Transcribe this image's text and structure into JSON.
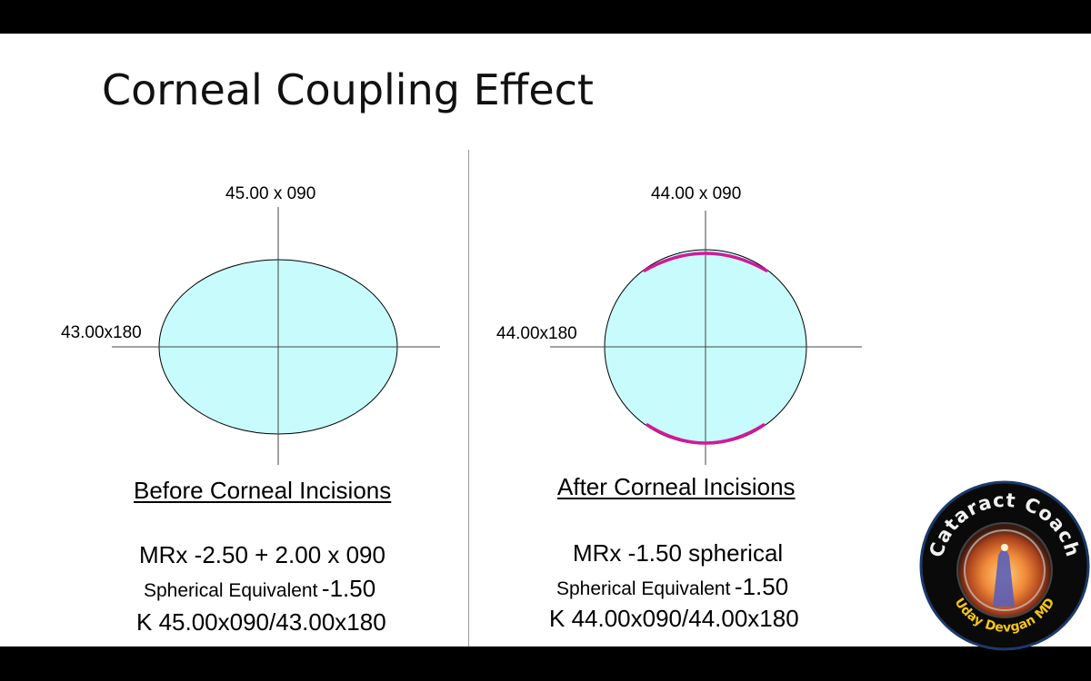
{
  "title": "Corneal Coupling Effect",
  "left": {
    "vertical_label": "45.00 x 090",
    "horizontal_label": "43.00x180",
    "caption": "Before Corneal Incisions",
    "mrx": "MRx -2.50 + 2.00 x 090",
    "se_label": "Spherical Equivalent",
    "se_value": "-1.50",
    "k": "K 45.00x090/43.00x180"
  },
  "right": {
    "vertical_label": "44.00 x 090",
    "horizontal_label": "44.00x180",
    "caption": "After Corneal Incisions",
    "mrx": "MRx -1.50 spherical",
    "se_label": "Spherical Equivalent",
    "se_value": "-1.50",
    "k": "K 44.00x090/44.00x180"
  },
  "logo": {
    "top_text": "Cataract Coach",
    "bottom_text": "Uday Devgan MD"
  },
  "colors": {
    "cornea_fill": "#c8fcfc",
    "incision": "#d4189a",
    "logo_text": "#f5c518"
  }
}
